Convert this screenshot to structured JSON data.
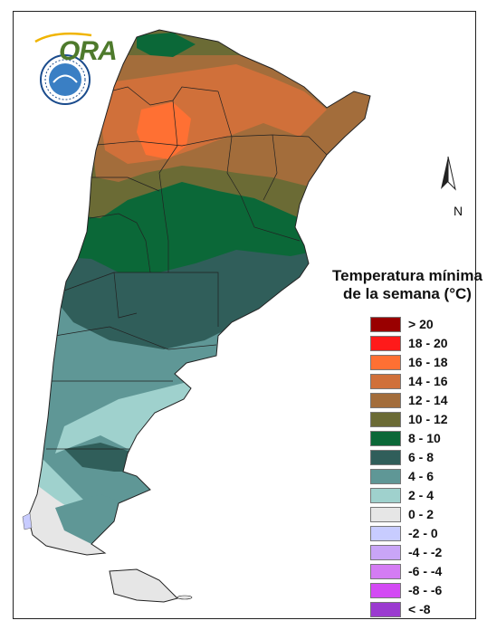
{
  "logo": {
    "text": "ORA"
  },
  "legend": {
    "title_line1": "Temperatura mínima",
    "title_line2": "de la semana (°C)",
    "items": [
      {
        "label": "> 20",
        "color": "#990000"
      },
      {
        "label": "18 - 20",
        "color": "#ff1a1a"
      },
      {
        "label": "16 - 18",
        "color": "#ff7033"
      },
      {
        "label": "14 - 16",
        "color": "#d0703a"
      },
      {
        "label": "12 - 14",
        "color": "#a36d3b"
      },
      {
        "label": "10 - 12",
        "color": "#6b6b35"
      },
      {
        "label": "8 - 10",
        "color": "#0b6838"
      },
      {
        "label": "6 - 8",
        "color": "#305e5a"
      },
      {
        "label": "4 - 6",
        "color": "#5f9796"
      },
      {
        "label": "2 - 4",
        "color": "#9fd1cd"
      },
      {
        "label": "0 - 2",
        "color": "#e6e6e6"
      },
      {
        "label": "-2 - 0",
        "color": "#c8ccff"
      },
      {
        "label": "-4 - -2",
        "color": "#c9a5f7"
      },
      {
        "label": "-6 - -4",
        "color": "#d47cf3"
      },
      {
        "label": "-8 - -6",
        "color": "#d34af4"
      },
      {
        "label": "< -8",
        "color": "#9b3bd0"
      }
    ]
  },
  "north_arrow": {
    "label": "N",
    "icon": "north-arrow-icon"
  }
}
